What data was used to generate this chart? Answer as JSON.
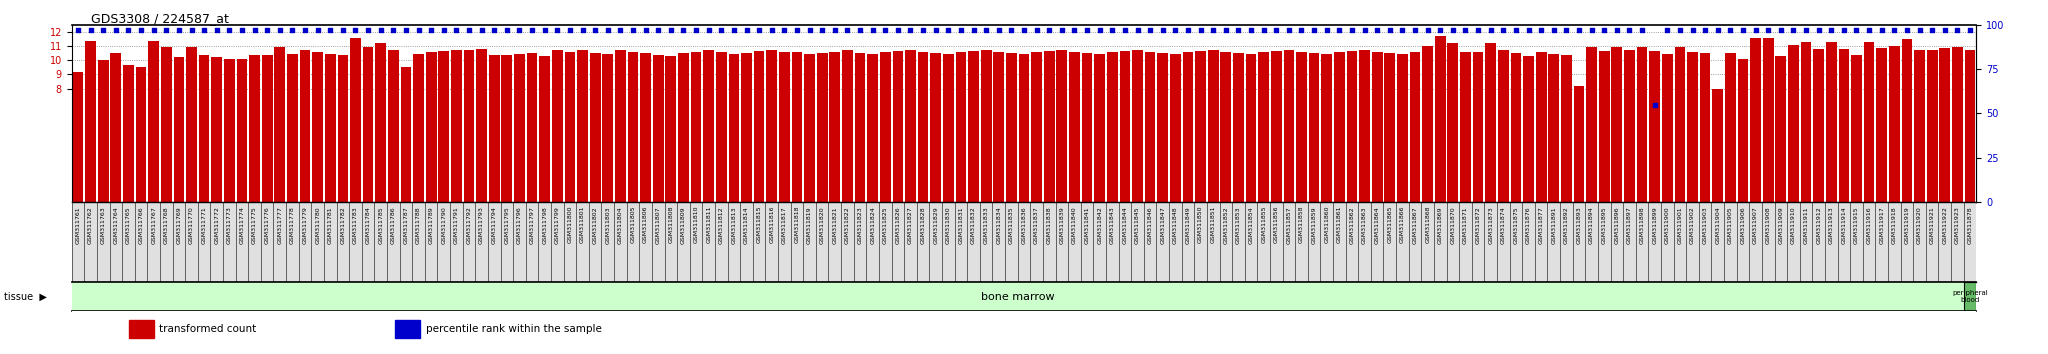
{
  "title": "GDS3308 / 224587_at",
  "ylim_left": [
    0,
    12.5
  ],
  "ylim_right": [
    0,
    100
  ],
  "yticks_left": [
    8,
    9,
    10,
    11,
    12
  ],
  "yticks_right": [
    0,
    25,
    50,
    75,
    100
  ],
  "bar_color": "#CC0000",
  "dot_color": "#0000CC",
  "bg_color": "#FFFFFF",
  "tissue_bg": "#CCFFCC",
  "tissue_peripheral_bg": "#66BB66",
  "xticklabel_fontsize": 4.5,
  "legend_items": [
    "transformed count",
    "percentile rank within the sample"
  ],
  "legend_colors": [
    "#CC0000",
    "#0000CC"
  ],
  "tissue_label": "tissue",
  "bone_marrow_label": "bone marrow",
  "peripheral_label": "peripheral\nblood",
  "samples": [
    "GSM311761",
    "GSM311762",
    "GSM311763",
    "GSM311764",
    "GSM311765",
    "GSM311766",
    "GSM311767",
    "GSM311768",
    "GSM311769",
    "GSM311770",
    "GSM311771",
    "GSM311772",
    "GSM311773",
    "GSM311774",
    "GSM311775",
    "GSM311776",
    "GSM311777",
    "GSM311778",
    "GSM311779",
    "GSM311780",
    "GSM311781",
    "GSM311782",
    "GSM311783",
    "GSM311784",
    "GSM311785",
    "GSM311786",
    "GSM311787",
    "GSM311788",
    "GSM311789",
    "GSM311790",
    "GSM311791",
    "GSM311792",
    "GSM311793",
    "GSM311794",
    "GSM311795",
    "GSM311796",
    "GSM311797",
    "GSM311798",
    "GSM311799",
    "GSM311800",
    "GSM311801",
    "GSM311802",
    "GSM311803",
    "GSM311804",
    "GSM311805",
    "GSM311806",
    "GSM311807",
    "GSM311808",
    "GSM311809",
    "GSM311810",
    "GSM311811",
    "GSM311812",
    "GSM311813",
    "GSM311814",
    "GSM311815",
    "GSM311816",
    "GSM311817",
    "GSM311818",
    "GSM311819",
    "GSM311820",
    "GSM311821",
    "GSM311822",
    "GSM311823",
    "GSM311824",
    "GSM311825",
    "GSM311826",
    "GSM311827",
    "GSM311828",
    "GSM311829",
    "GSM311830",
    "GSM311831",
    "GSM311832",
    "GSM311833",
    "GSM311834",
    "GSM311835",
    "GSM311836",
    "GSM311837",
    "GSM311838",
    "GSM311839",
    "GSM311840",
    "GSM311841",
    "GSM311842",
    "GSM311843",
    "GSM311844",
    "GSM311845",
    "GSM311846",
    "GSM311847",
    "GSM311848",
    "GSM311849",
    "GSM311850",
    "GSM311851",
    "GSM311852",
    "GSM311853",
    "GSM311854",
    "GSM311855",
    "GSM311856",
    "GSM311857",
    "GSM311858",
    "GSM311859",
    "GSM311860",
    "GSM311861",
    "GSM311862",
    "GSM311863",
    "GSM311864",
    "GSM311865",
    "GSM311866",
    "GSM311867",
    "GSM311868",
    "GSM311869",
    "GSM311870",
    "GSM311871",
    "GSM311872",
    "GSM311873",
    "GSM311874",
    "GSM311875",
    "GSM311876",
    "GSM311877",
    "GSM311891",
    "GSM311892",
    "GSM311893",
    "GSM311894",
    "GSM311895",
    "GSM311896",
    "GSM311897",
    "GSM311898",
    "GSM311899",
    "GSM311900",
    "GSM311901",
    "GSM311902",
    "GSM311903",
    "GSM311904",
    "GSM311905",
    "GSM311906",
    "GSM311907",
    "GSM311908",
    "GSM311909",
    "GSM311910",
    "GSM311911",
    "GSM311912",
    "GSM311913",
    "GSM311914",
    "GSM311915",
    "GSM311916",
    "GSM311917",
    "GSM311918",
    "GSM311919",
    "GSM311920",
    "GSM311921",
    "GSM311922",
    "GSM311923",
    "GSM311878"
  ],
  "bar_values": [
    9.15,
    11.35,
    10.05,
    10.5,
    9.65,
    9.55,
    11.35,
    10.9,
    10.2,
    10.95,
    10.35,
    10.2,
    10.1,
    10.1,
    10.35,
    10.35,
    10.9,
    10.45,
    10.7,
    10.55,
    10.45,
    10.4,
    11.55,
    10.9,
    11.2,
    10.7,
    9.55,
    10.45,
    10.6,
    10.65,
    10.7,
    10.7,
    10.8,
    10.4,
    10.35,
    10.45,
    10.5,
    10.3,
    10.7,
    10.6,
    10.7,
    10.5,
    10.45,
    10.7,
    10.55,
    10.5,
    10.4,
    10.3,
    10.5,
    10.6,
    10.7,
    10.55,
    10.45,
    10.5,
    10.65,
    10.7,
    10.6,
    10.55,
    10.45,
    10.5,
    10.6,
    10.7,
    10.5,
    10.45,
    10.55,
    10.65,
    10.7,
    10.6,
    10.5,
    10.45,
    10.55,
    10.65,
    10.7,
    10.6,
    10.5,
    10.45,
    10.55,
    10.65,
    10.7,
    10.6,
    10.5,
    10.45,
    10.55,
    10.65,
    10.7,
    10.6,
    10.5,
    10.45,
    10.55,
    10.65,
    10.7,
    10.6,
    10.5,
    10.45,
    10.55,
    10.65,
    10.7,
    10.6,
    10.5,
    10.45,
    10.55,
    10.65,
    10.7,
    10.6,
    10.5,
    10.45,
    10.55,
    11.0,
    11.7,
    11.2,
    10.6,
    10.55,
    11.2,
    10.7,
    10.5,
    10.3,
    10.6,
    10.45,
    10.35,
    8.2,
    10.95,
    10.65,
    10.95,
    10.7,
    10.95,
    10.65,
    10.45,
    10.95,
    10.55,
    10.5,
    8.0,
    10.5,
    10.1,
    11.6,
    11.6,
    10.3,
    11.1,
    11.25,
    10.8,
    11.25,
    10.8,
    10.35,
    11.25,
    10.85,
    11.0,
    11.5,
    10.7,
    10.7,
    10.85,
    10.9,
    10.7
  ],
  "dot_values": [
    97,
    97,
    97,
    97,
    97,
    97,
    97,
    97,
    97,
    97,
    97,
    97,
    97,
    97,
    97,
    97,
    97,
    97,
    97,
    97,
    97,
    97,
    97,
    97,
    97,
    97,
    97,
    97,
    97,
    97,
    97,
    97,
    97,
    97,
    97,
    97,
    97,
    97,
    97,
    97,
    97,
    97,
    97,
    97,
    97,
    97,
    97,
    97,
    97,
    97,
    97,
    97,
    97,
    97,
    97,
    97,
    97,
    97,
    97,
    97,
    97,
    97,
    97,
    97,
    97,
    97,
    97,
    97,
    97,
    97,
    97,
    97,
    97,
    97,
    97,
    97,
    97,
    97,
    97,
    97,
    97,
    97,
    97,
    97,
    97,
    97,
    97,
    97,
    97,
    97,
    97,
    97,
    97,
    97,
    97,
    97,
    97,
    97,
    97,
    97,
    97,
    97,
    97,
    97,
    97,
    97,
    97,
    97,
    97,
    97,
    97,
    97,
    97,
    97,
    97,
    97,
    97,
    97,
    97,
    97,
    97,
    97,
    97,
    97,
    97,
    55,
    97,
    97,
    97,
    97,
    97,
    97,
    97,
    97,
    97,
    97,
    97,
    97,
    97,
    97,
    97,
    97,
    97,
    97,
    97,
    97,
    97,
    97,
    97,
    97,
    97
  ],
  "n_bone_marrow": 150,
  "n_total": 151
}
